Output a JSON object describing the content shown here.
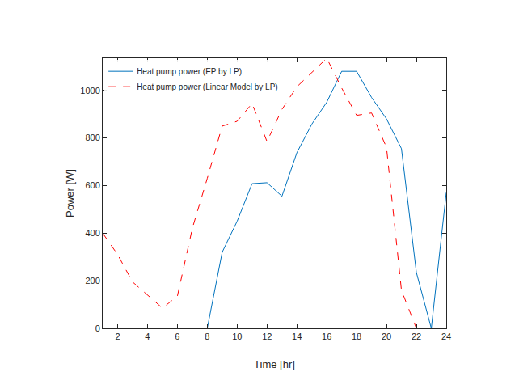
{
  "chart_data": {
    "type": "line",
    "x_label": "Time [hr]",
    "y_label": "Power [W]",
    "x": [
      1,
      2,
      3,
      4,
      5,
      6,
      7,
      8,
      9,
      10,
      11,
      12,
      13,
      14,
      15,
      16,
      17,
      18,
      19,
      20,
      21,
      22,
      23,
      24
    ],
    "series": [
      {
        "name": "Heat pump power (EP by LP)",
        "color": "#0072bd",
        "line_style": "solid",
        "values": [
          0,
          0,
          0,
          0,
          0,
          0,
          0,
          0,
          320,
          450,
          608,
          612,
          555,
          738,
          858,
          950,
          1080,
          1080,
          970,
          880,
          755,
          235,
          0,
          570
        ]
      },
      {
        "name": "Heat pump power (Linear Model by LP)",
        "color": "#ff0000",
        "line_style": "dashed",
        "values": [
          400,
          310,
          195,
          140,
          85,
          135,
          420,
          630,
          850,
          870,
          945,
          785,
          920,
          1015,
          1075,
          1135,
          1010,
          895,
          905,
          760,
          160,
          0,
          0,
          0
        ]
      }
    ],
    "xlim": [
      1,
      24
    ],
    "xticks": [
      2,
      4,
      6,
      8,
      10,
      12,
      14,
      16,
      18,
      20,
      22,
      24
    ],
    "ylim": [
      0,
      1135
    ],
    "yticks": [
      0,
      200,
      400,
      600,
      800,
      1000
    ],
    "grid": false,
    "legend": "upper left"
  }
}
